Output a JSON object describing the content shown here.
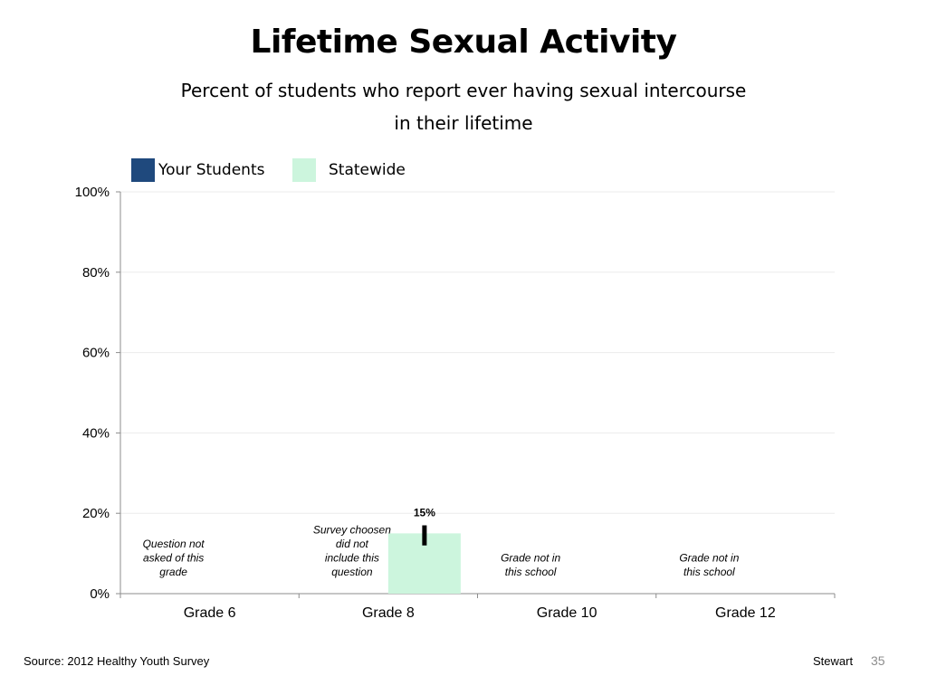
{
  "title": "Lifetime Sexual Activity",
  "subtitle_lines": [
    "Percent of students who report ever having sexual intercourse",
    "in their lifetime"
  ],
  "colors": {
    "your_students": "#1f497d",
    "statewide": "#ccf5dd",
    "error_bar": "#000000",
    "gridline": "#ebebeb",
    "axis": "#8c8c8c"
  },
  "chart_data": {
    "type": "bar",
    "categories": [
      "Grade 6",
      "Grade 8",
      "Grade 10",
      "Grade 12"
    ],
    "series": [
      {
        "name": "Your Students",
        "values": [
          null,
          null,
          null,
          null
        ]
      },
      {
        "name": "Statewide",
        "values": [
          null,
          15,
          null,
          null
        ]
      }
    ],
    "data_labels": [
      "",
      "15%",
      "",
      ""
    ],
    "error_bar": {
      "category": "Grade 8",
      "low": 12,
      "high": 17
    },
    "category_notes": [
      "Question not asked of this grade",
      "Survey choosen did not include this question",
      "Grade not in this school",
      "Grade not in this school"
    ],
    "y_ticks": [
      "0%",
      "20%",
      "40%",
      "60%",
      "80%",
      "100%"
    ],
    "ylim": [
      0,
      100
    ],
    "grid": true,
    "legend_position": "top-left",
    "xlabel": "",
    "ylabel": ""
  },
  "footer": {
    "source": "Source: 2012 Healthy Youth Survey",
    "author": "Stewart",
    "page": "35"
  }
}
